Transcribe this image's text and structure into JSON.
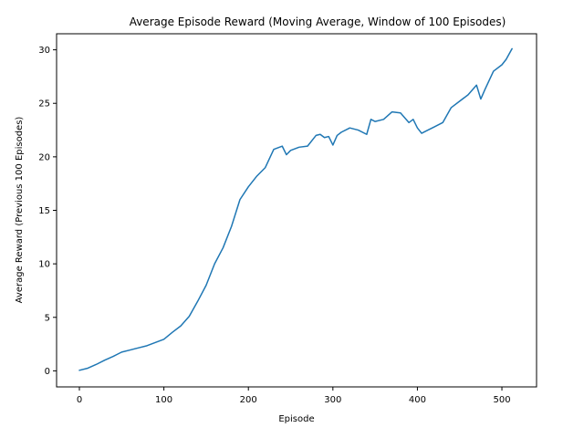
{
  "chart_data": {
    "type": "line",
    "title": "Average Episode Reward (Moving Average, Window of 100 Episodes)",
    "xlabel": "Episode",
    "ylabel": "Average Reward (Previous 100 Episodes)",
    "xlim": [
      -27,
      541
    ],
    "ylim": [
      -1.5,
      31.5
    ],
    "xticks": [
      0,
      100,
      200,
      300,
      400,
      500
    ],
    "yticks": [
      0,
      5,
      10,
      15,
      20,
      25,
      30
    ],
    "grid": false,
    "series": [
      {
        "color": "#1f77b4",
        "x": [
          0,
          10,
          20,
          30,
          40,
          50,
          60,
          70,
          80,
          90,
          100,
          110,
          120,
          130,
          140,
          150,
          160,
          170,
          180,
          190,
          200,
          210,
          220,
          230,
          240,
          245,
          250,
          260,
          270,
          280,
          285,
          290,
          295,
          300,
          305,
          310,
          320,
          330,
          340,
          345,
          350,
          360,
          370,
          380,
          390,
          395,
          400,
          405,
          410,
          420,
          430,
          440,
          450,
          460,
          470,
          475,
          480,
          490,
          500,
          505,
          512
        ],
        "y": [
          0.05,
          0.25,
          0.6,
          1.0,
          1.35,
          1.75,
          1.95,
          2.15,
          2.35,
          2.65,
          2.95,
          3.6,
          4.2,
          5.1,
          6.5,
          8.0,
          10.0,
          11.5,
          13.5,
          16.0,
          17.2,
          18.2,
          19.0,
          20.7,
          21.0,
          20.2,
          20.6,
          20.9,
          21.0,
          22.0,
          22.1,
          21.8,
          21.9,
          21.1,
          22.0,
          22.3,
          22.7,
          22.5,
          22.1,
          23.5,
          23.3,
          23.5,
          24.2,
          24.1,
          23.2,
          23.5,
          22.7,
          22.2,
          22.4,
          22.8,
          23.2,
          24.6,
          25.2,
          25.8,
          26.7,
          25.4,
          26.3,
          28.0,
          28.6,
          29.1,
          30.1
        ]
      }
    ]
  }
}
